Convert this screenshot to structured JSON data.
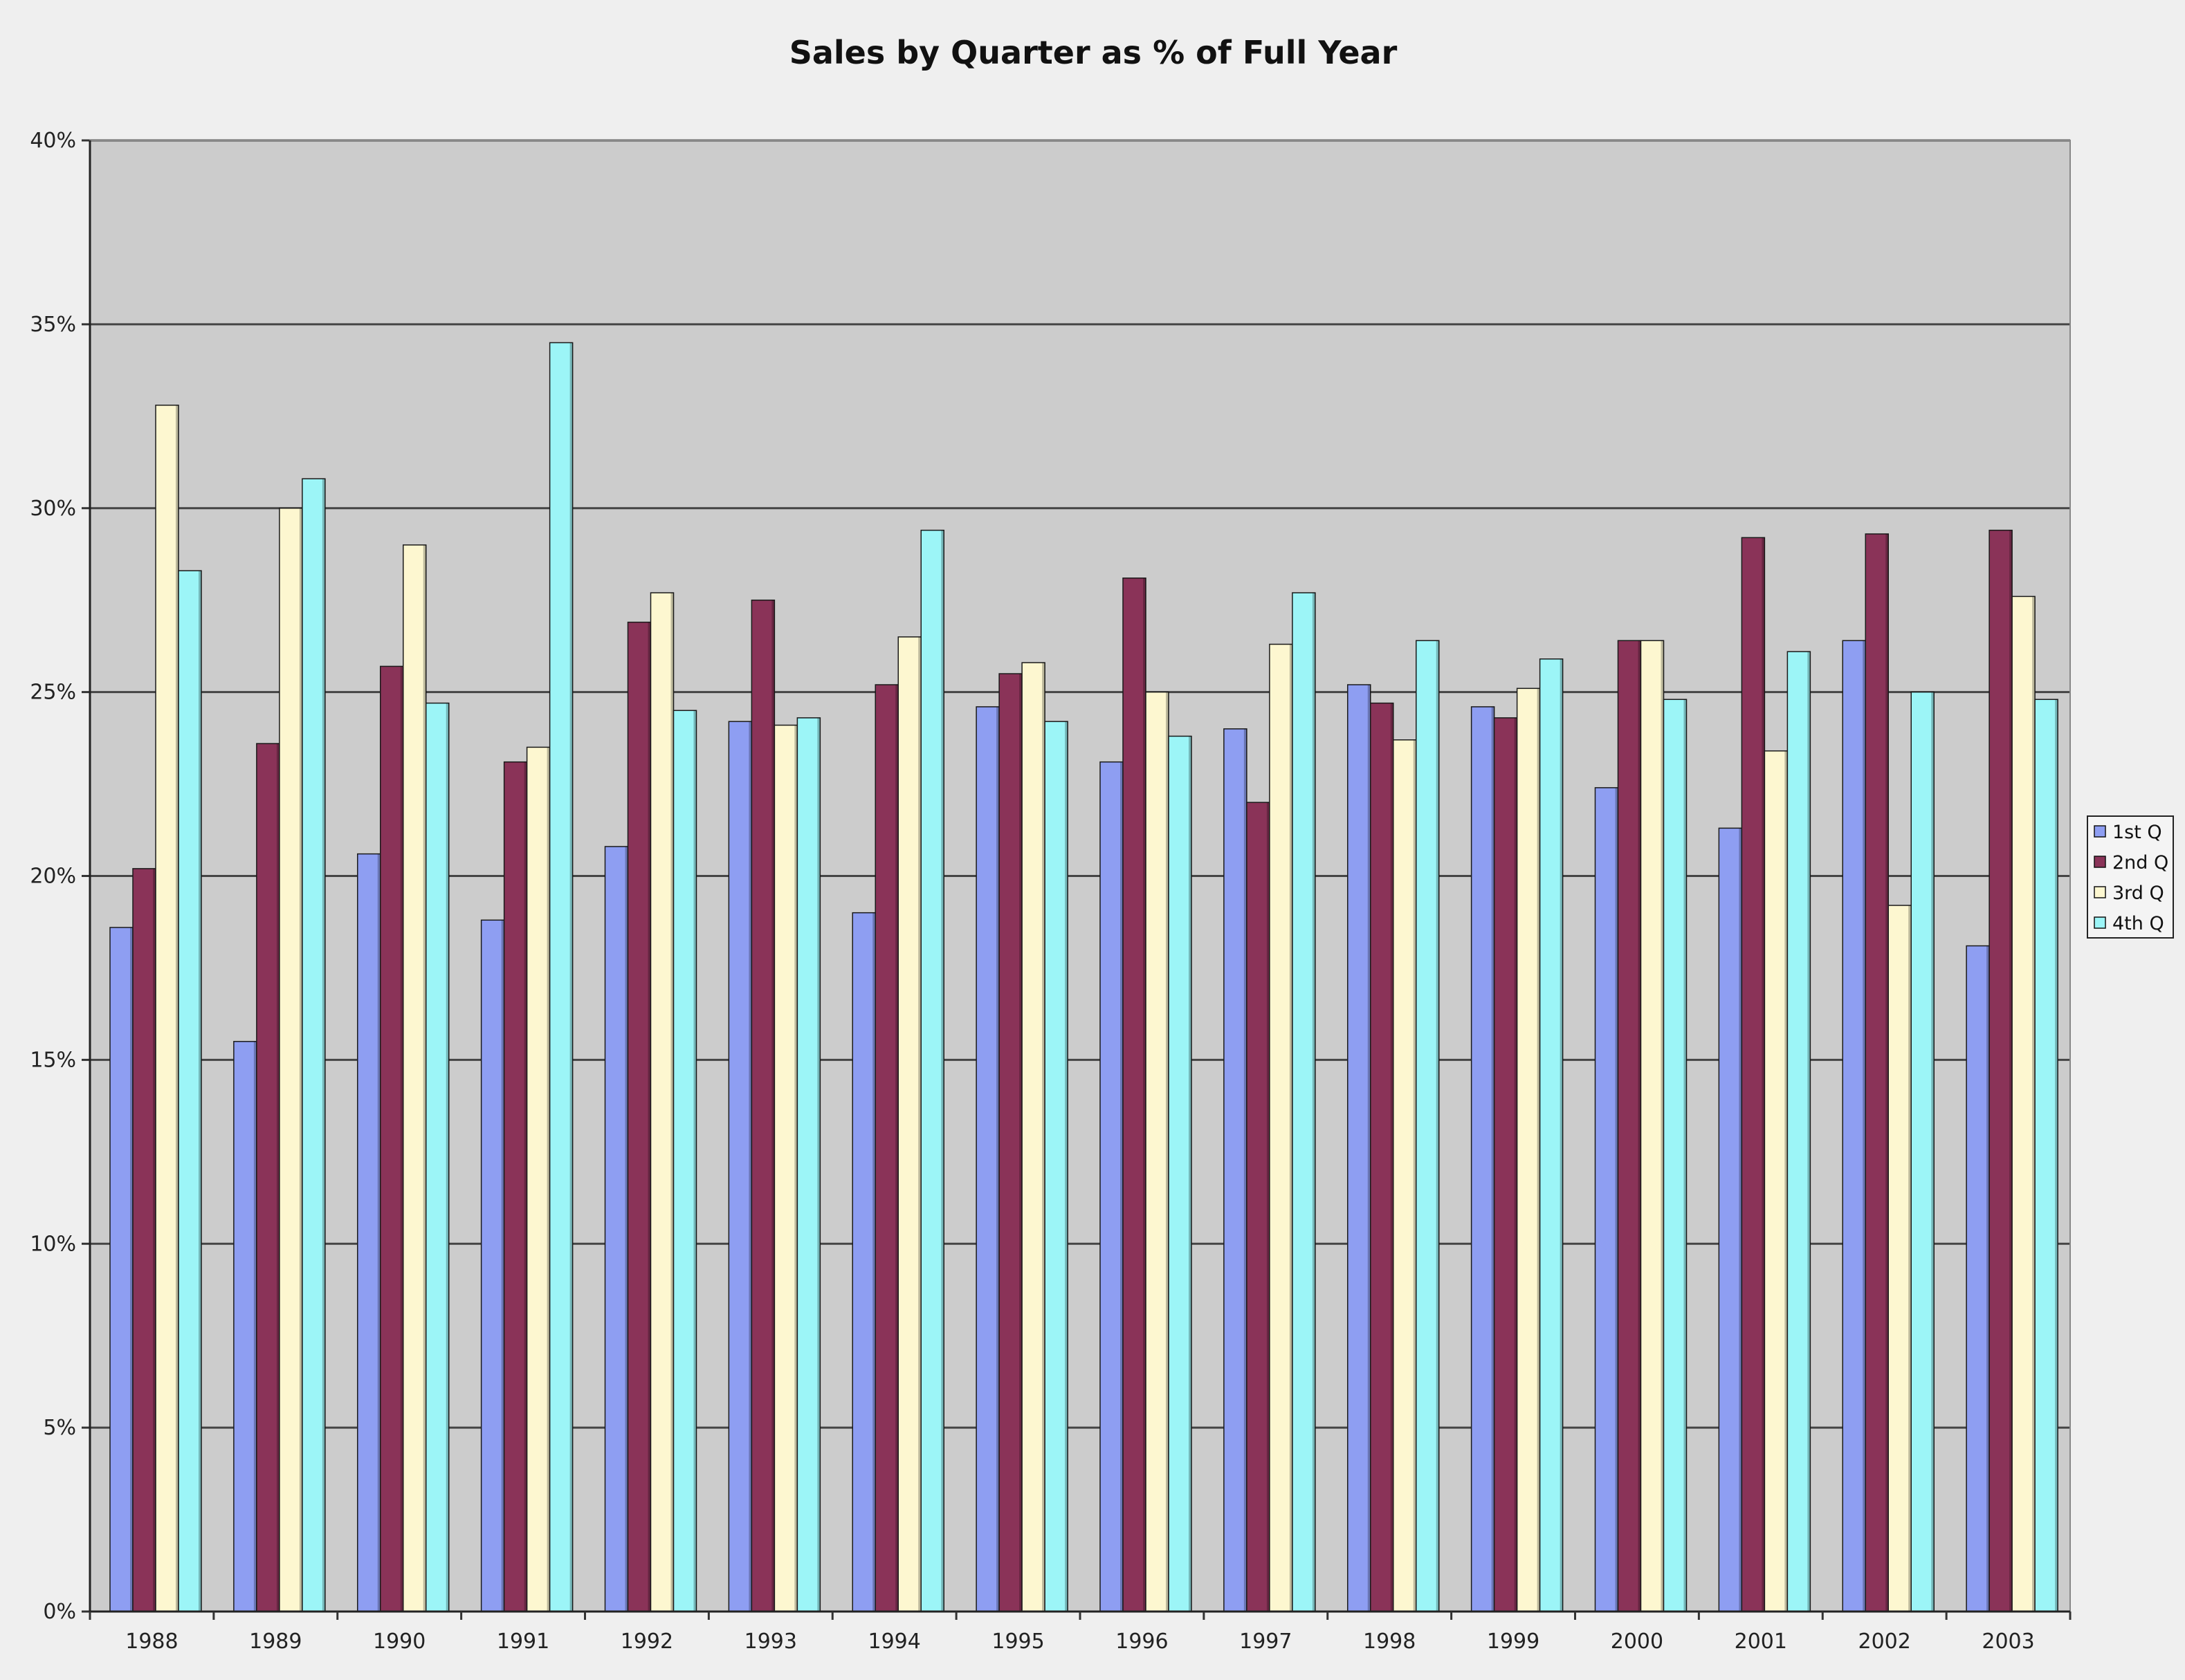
{
  "chart_data": {
    "type": "bar",
    "title": "Sales by Quarter as % of Full Year",
    "xlabel": "",
    "ylabel": "",
    "categories": [
      "1988",
      "1989",
      "1990",
      "1991",
      "1992",
      "1993",
      "1994",
      "1995",
      "1996",
      "1997",
      "1998",
      "1999",
      "2000",
      "2001",
      "2002",
      "2003"
    ],
    "series": [
      {
        "name": "1st Q",
        "color": "#8e9ef2",
        "values": [
          18.6,
          15.5,
          20.6,
          18.8,
          20.8,
          24.2,
          19.0,
          24.6,
          23.1,
          24.0,
          25.2,
          24.6,
          22.4,
          21.3,
          26.4,
          18.1
        ]
      },
      {
        "name": "2nd Q",
        "color": "#8a3358",
        "values": [
          20.2,
          23.6,
          25.7,
          23.1,
          26.9,
          27.5,
          25.2,
          25.5,
          28.1,
          22.0,
          24.7,
          24.3,
          26.4,
          29.2,
          29.3,
          29.4
        ]
      },
      {
        "name": "3rd Q",
        "color": "#fdf7d0",
        "values": [
          32.8,
          30.0,
          29.0,
          23.5,
          27.7,
          24.1,
          26.5,
          25.8,
          25.0,
          26.3,
          23.7,
          25.1,
          26.4,
          23.4,
          19.2,
          27.6
        ]
      },
      {
        "name": "4th Q",
        "color": "#9cf5f7",
        "values": [
          28.3,
          30.8,
          24.7,
          34.5,
          24.5,
          24.3,
          29.4,
          24.2,
          23.8,
          27.7,
          26.4,
          25.9,
          24.8,
          26.1,
          25.0,
          24.8
        ]
      }
    ],
    "ylim": [
      0,
      40
    ],
    "yticks": [
      0,
      5,
      10,
      15,
      20,
      25,
      30,
      35,
      40
    ],
    "ytick_labels": [
      "0%",
      "5%",
      "10%",
      "15%",
      "20%",
      "25%",
      "30%",
      "35%",
      "40%"
    ],
    "grid": true,
    "legend_position": "right",
    "plot_background": "#cccccc"
  }
}
